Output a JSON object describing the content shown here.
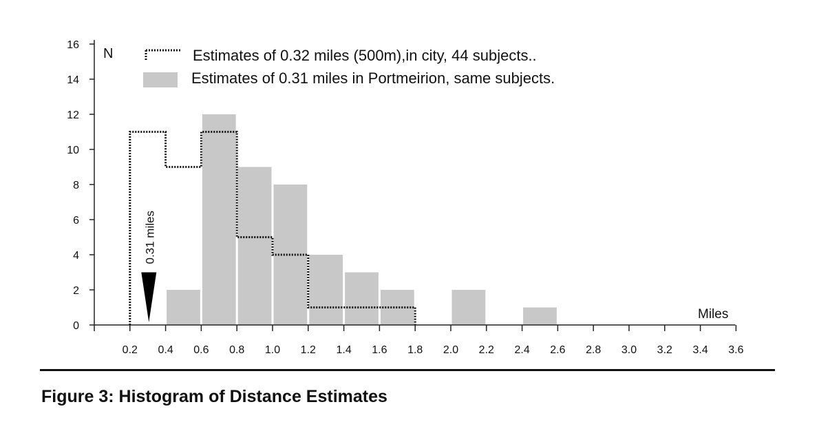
{
  "chart_data": {
    "type": "bar",
    "subtype": "histogram",
    "title": "",
    "xlabel": "Miles",
    "ylabel": "N",
    "ylim": [
      0,
      16
    ],
    "xlim": [
      0,
      3.6
    ],
    "y_ticks": [
      "0",
      "2",
      "4",
      "6",
      "8",
      "10",
      "12",
      "14",
      "16"
    ],
    "x_ticks": [
      "0.2",
      "0.4",
      "0.6",
      "0.8",
      "1.0",
      "1.2",
      "1.4",
      "1.6",
      "1.8",
      "2.0",
      "2.2",
      "2.4",
      "2.6",
      "2.8",
      "3.0",
      "3.2",
      "3.4",
      "3.6"
    ],
    "bin_width": 0.2,
    "series": [
      {
        "name": "Estimates of 0.31 miles in Portmeirion, same subjects.",
        "style": "filled-bars",
        "color": "#c8c8c8",
        "bins": [
          {
            "x0": 0.4,
            "x1": 0.6,
            "value": 2
          },
          {
            "x0": 0.6,
            "x1": 0.8,
            "value": 12
          },
          {
            "x0": 0.8,
            "x1": 1.0,
            "value": 9
          },
          {
            "x0": 1.0,
            "x1": 1.2,
            "value": 8
          },
          {
            "x0": 1.2,
            "x1": 1.4,
            "value": 4
          },
          {
            "x0": 1.4,
            "x1": 1.6,
            "value": 3
          },
          {
            "x0": 1.6,
            "x1": 1.8,
            "value": 2
          },
          {
            "x0": 2.0,
            "x1": 2.2,
            "value": 2
          },
          {
            "x0": 2.4,
            "x1": 2.6,
            "value": 1
          }
        ]
      },
      {
        "name": "Estimates of 0.32 miles (500m),in city, 44 subjects..",
        "style": "dotted-step",
        "color": "#111111",
        "bins": [
          {
            "x0": 0.2,
            "x1": 0.4,
            "value": 11
          },
          {
            "x0": 0.4,
            "x1": 0.6,
            "value": 9
          },
          {
            "x0": 0.6,
            "x1": 0.8,
            "value": 11
          },
          {
            "x0": 0.8,
            "x1": 1.0,
            "value": 5
          },
          {
            "x0": 1.0,
            "x1": 1.2,
            "value": 4
          },
          {
            "x0": 1.2,
            "x1": 1.4,
            "value": 1
          },
          {
            "x0": 1.4,
            "x1": 1.6,
            "value": 1
          },
          {
            "x0": 1.6,
            "x1": 1.8,
            "value": 1
          }
        ]
      }
    ],
    "annotations": [
      {
        "label": "0.31 miles",
        "x": 0.31,
        "marker": "down-triangle",
        "marker_top": 3
      }
    ],
    "legend": "top-left",
    "grid": false
  },
  "caption": "Figure 3:  Histogram of Distance Estimates"
}
